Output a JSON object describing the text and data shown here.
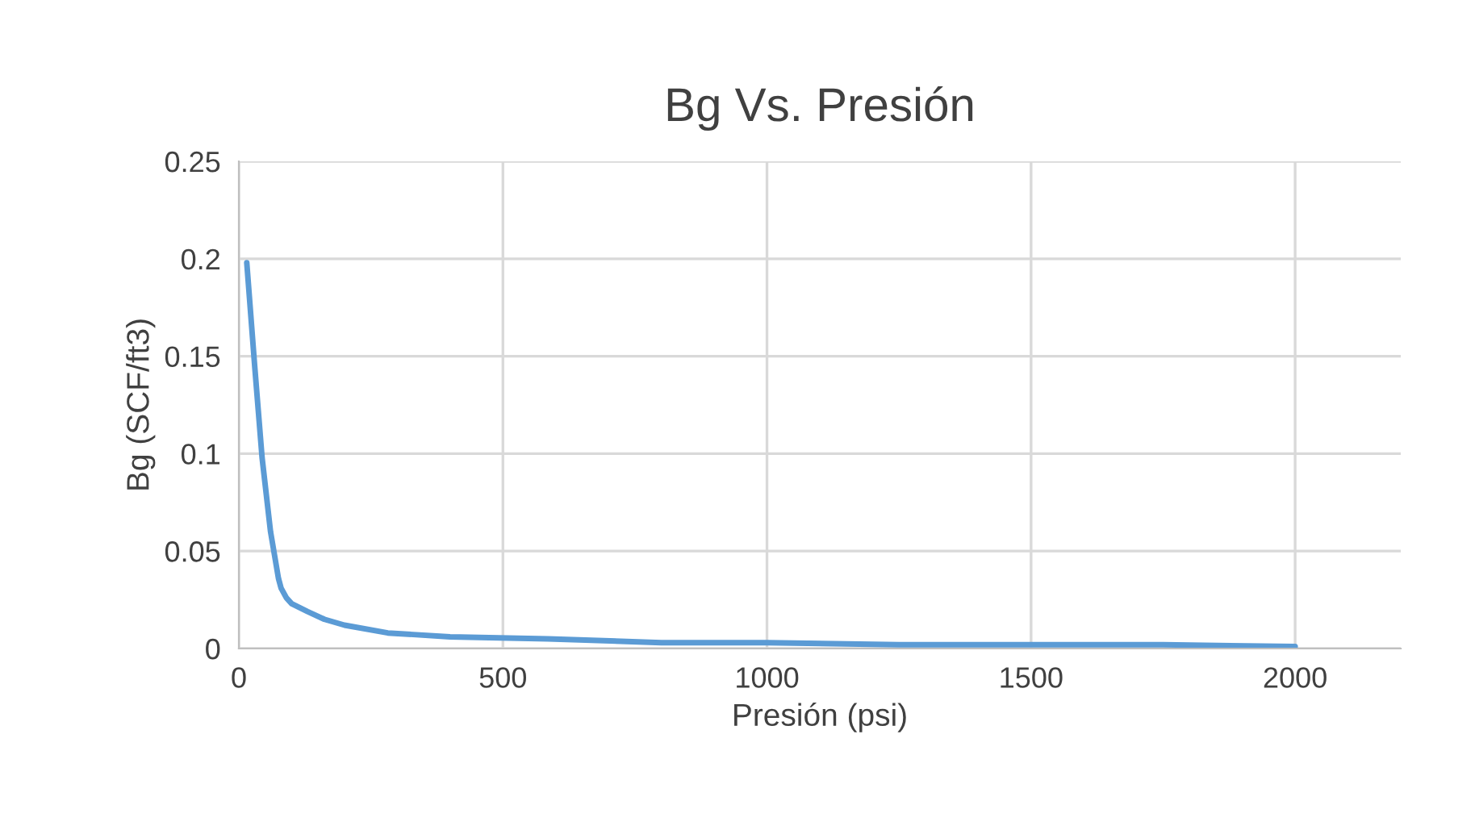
{
  "chart_data": {
    "type": "line",
    "title": "Bg Vs. Presión",
    "xlabel": "Presión (psi)",
    "ylabel": "Bg (SCF/ft3)",
    "series": [
      {
        "color": "#5b9bd5",
        "x": [
          15,
          30,
          44,
          60,
          75,
          80,
          90,
          100,
          130,
          162,
          200,
          282,
          400,
          585,
          800,
          1000,
          1250,
          1500,
          1750,
          2000
        ],
        "values": [
          0.198,
          0.145,
          0.098,
          0.06,
          0.036,
          0.031,
          0.026,
          0.023,
          0.019,
          0.015,
          0.012,
          0.008,
          0.006,
          0.005,
          0.003,
          0.003,
          0.002,
          0.002,
          0.002,
          0.001
        ]
      }
    ],
    "xlim": [
      0,
      2200
    ],
    "xticks": [
      0,
      500,
      1000,
      1500,
      2000
    ],
    "ylim": [
      0,
      0.25
    ],
    "yticks": [
      0,
      0.05,
      0.1,
      0.15,
      0.2,
      0.25
    ],
    "grid": true,
    "marker": "none",
    "line_style": "solid"
  }
}
